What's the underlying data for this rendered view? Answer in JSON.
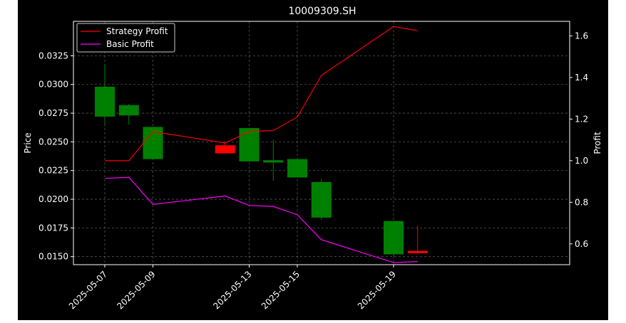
{
  "chart_data": {
    "type": "candlestick+line",
    "title": "10009309.SH",
    "ylabel_left": "Price",
    "ylabel_right": "Profit",
    "xlabel": "",
    "x_tick_labels": [
      "2025-05-07",
      "2025-05-09",
      "2025-05-13",
      "2025-05-15",
      "2025-05-19"
    ],
    "y_left_ticks": [
      "0.0150",
      "0.0175",
      "0.0200",
      "0.0225",
      "0.0250",
      "0.0275",
      "0.0300",
      "0.0325"
    ],
    "y_right_ticks": [
      "0.6",
      "0.8",
      "1.0",
      "1.2",
      "1.4",
      "1.6"
    ],
    "ylim_left": [
      0.0143,
      0.0355
    ],
    "ylim_right": [
      0.5,
      1.67
    ],
    "grid": true,
    "legend_position": "top-left",
    "colors": {
      "up": "#008000",
      "down": "#ff0000",
      "strategy": "#ff0000",
      "basic": "#ff00ff",
      "background": "#000000",
      "text": "#ffffff"
    },
    "candles": [
      {
        "date": "2025-05-07",
        "open": 0.0272,
        "high": 0.0318,
        "low": 0.0264,
        "close": 0.0298
      },
      {
        "date": "2025-05-08",
        "open": 0.0273,
        "high": 0.0283,
        "low": 0.0265,
        "close": 0.0282
      },
      {
        "date": "2025-05-09",
        "open": 0.0235,
        "high": 0.0263,
        "low": 0.0235,
        "close": 0.0263
      },
      {
        "date": "2025-05-12",
        "open": 0.0247,
        "high": 0.025,
        "low": 0.024,
        "close": 0.024
      },
      {
        "date": "2025-05-13",
        "open": 0.0233,
        "high": 0.0262,
        "low": 0.0233,
        "close": 0.0262
      },
      {
        "date": "2025-05-14",
        "open": 0.0232,
        "high": 0.0252,
        "low": 0.0216,
        "close": 0.0234
      },
      {
        "date": "2025-05-15",
        "open": 0.0219,
        "high": 0.0235,
        "low": 0.0219,
        "close": 0.0235
      },
      {
        "date": "2025-05-16",
        "open": 0.0184,
        "high": 0.0218,
        "low": 0.0182,
        "close": 0.0215
      },
      {
        "date": "2025-05-19",
        "open": 0.0152,
        "high": 0.0181,
        "low": 0.015,
        "close": 0.0181
      },
      {
        "date": "2025-05-20",
        "open": 0.0155,
        "high": 0.0177,
        "low": 0.0153,
        "close": 0.0153
      }
    ],
    "series": [
      {
        "name": "Strategy Profit",
        "values": [
          1.0,
          1.0,
          1.14,
          1.085,
          1.14,
          1.145,
          1.21,
          1.41,
          1.645,
          1.625
        ]
      },
      {
        "name": "Basic Profit",
        "values": [
          0.915,
          0.92,
          0.79,
          0.83,
          0.785,
          0.78,
          0.74,
          0.62,
          0.51,
          0.515
        ]
      }
    ]
  }
}
